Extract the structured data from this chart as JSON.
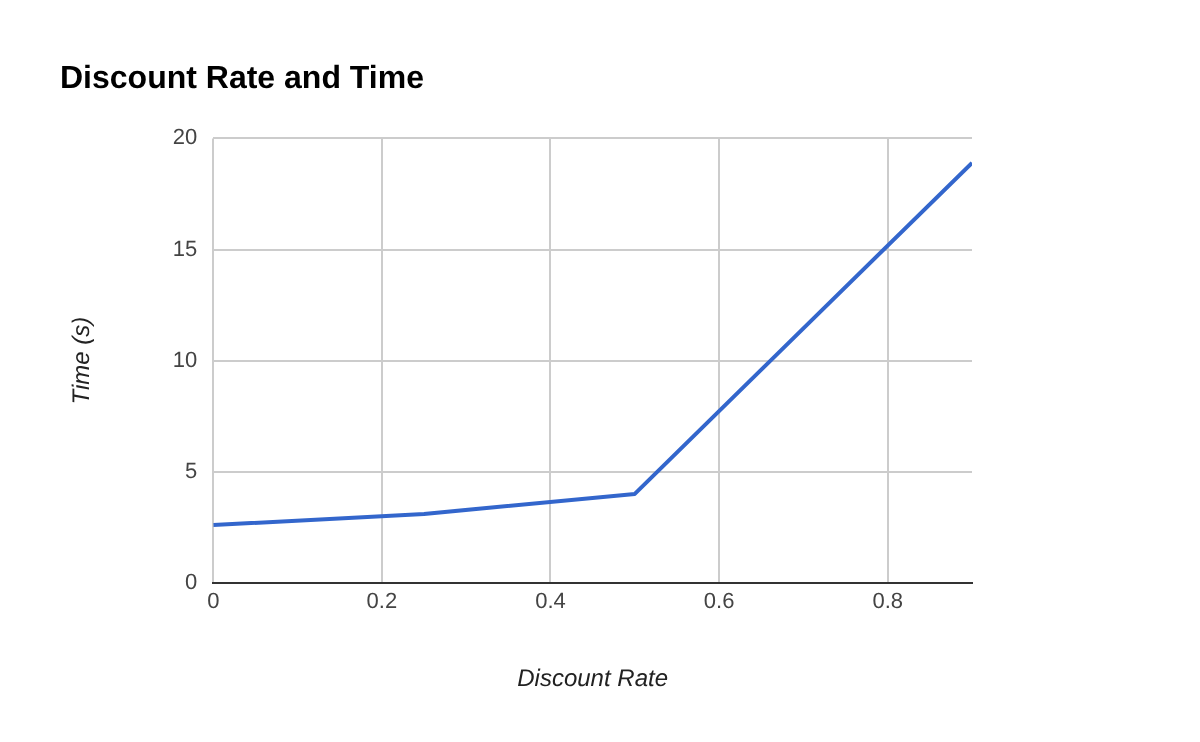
{
  "chart_data": {
    "type": "line",
    "title": "Discount Rate and Time",
    "xlabel": "Discount Rate",
    "ylabel": "Time (s)",
    "x": [
      0,
      0.25,
      0.5,
      0.9
    ],
    "series": [
      {
        "color": "#3366cc",
        "values": [
          2.6,
          3.1,
          4.0,
          18.9
        ]
      }
    ],
    "xlim": [
      0,
      0.9
    ],
    "xticks": [
      0,
      0.2,
      0.4,
      0.6,
      0.8
    ],
    "ylim": [
      0,
      20
    ],
    "yticks": [
      0,
      5,
      10,
      15,
      20
    ],
    "grid": true,
    "legend": false,
    "marker": "none",
    "line_style": "solid"
  }
}
